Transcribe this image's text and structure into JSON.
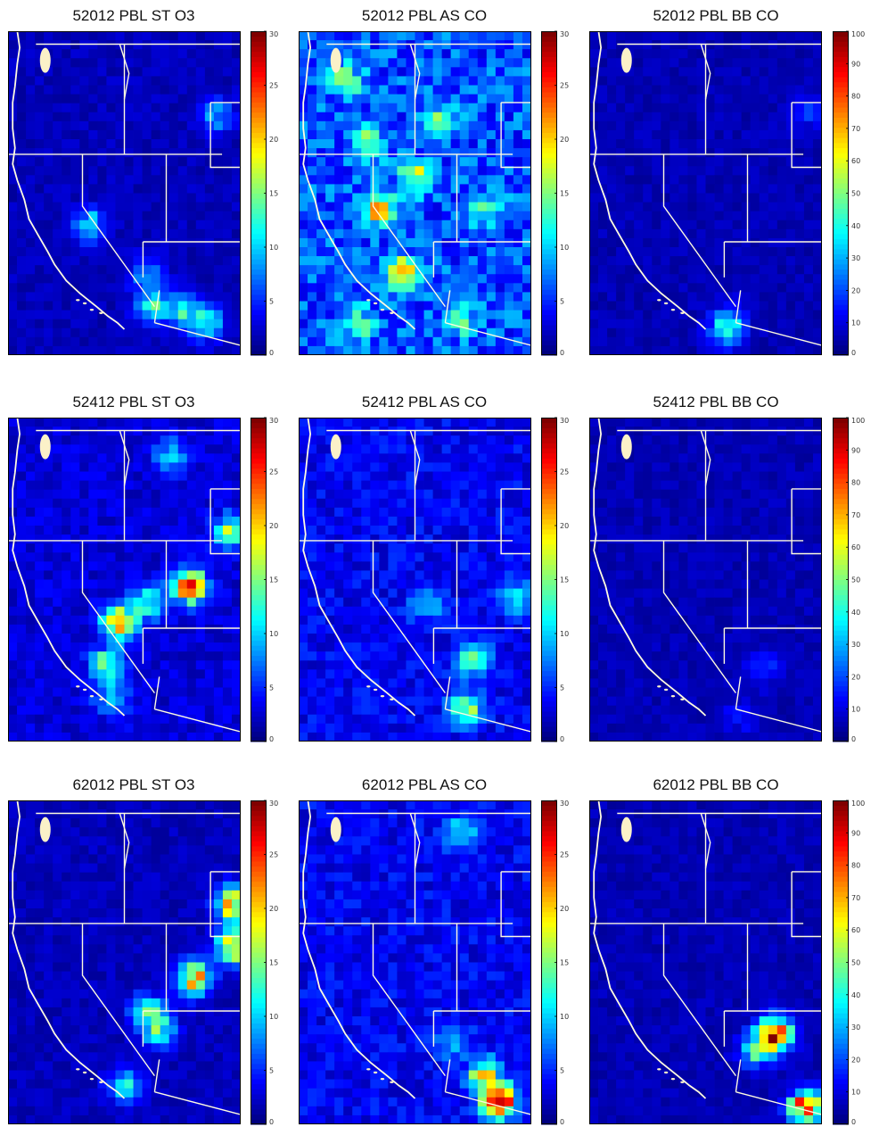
{
  "chart_data": [
    {
      "type": "heatmap",
      "title": "52012 PBL ST O3",
      "colorbar_ticks": [
        "0",
        "5",
        "10",
        "15",
        "20",
        "25",
        "30"
      ],
      "colorbar_range": [
        0,
        30
      ],
      "hotspots": [
        [
          0.62,
          0.85,
          12
        ],
        [
          0.85,
          0.9,
          12
        ],
        [
          0.75,
          0.86,
          10
        ],
        [
          0.35,
          0.6,
          10
        ],
        [
          0.9,
          0.26,
          8
        ],
        [
          0.6,
          0.75,
          8
        ]
      ],
      "base": 2,
      "colormap": "jet"
    },
    {
      "type": "heatmap",
      "title": "52012 PBL AS CO",
      "colorbar_ticks": [
        "0",
        "5",
        "10",
        "15",
        "20",
        "25",
        "30"
      ],
      "colorbar_range": [
        0,
        30
      ],
      "hotspots": [
        [
          0.45,
          0.75,
          18
        ],
        [
          0.35,
          0.55,
          16
        ],
        [
          0.5,
          0.45,
          12
        ],
        [
          0.2,
          0.15,
          10
        ],
        [
          0.3,
          0.35,
          10
        ],
        [
          0.6,
          0.28,
          9
        ],
        [
          0.8,
          0.55,
          9
        ],
        [
          0.25,
          0.9,
          9
        ],
        [
          0.7,
          0.9,
          8
        ]
      ],
      "base": 7,
      "colormap": "jet"
    },
    {
      "type": "heatmap",
      "title": "52012 PBL BB CO",
      "colorbar_ticks": [
        "0",
        "10",
        "20",
        "30",
        "40",
        "50",
        "60",
        "70",
        "80",
        "90",
        "100"
      ],
      "colorbar_range": [
        0,
        100
      ],
      "hotspots": [
        [
          0.93,
          0.25,
          14
        ],
        [
          0.61,
          0.9,
          26
        ],
        [
          0.57,
          0.93,
          22
        ]
      ],
      "base": 6,
      "colormap": "jet"
    },
    {
      "type": "heatmap",
      "title": "52412 PBL ST O3",
      "colorbar_ticks": [
        "0",
        "5",
        "10",
        "15",
        "20",
        "25",
        "30"
      ],
      "colorbar_range": [
        0,
        30
      ],
      "hotspots": [
        [
          0.48,
          0.63,
          20
        ],
        [
          0.78,
          0.52,
          24
        ],
        [
          0.6,
          0.57,
          13
        ],
        [
          0.43,
          0.76,
          14
        ],
        [
          0.96,
          0.35,
          14
        ],
        [
          0.45,
          0.87,
          9
        ],
        [
          0.7,
          0.12,
          8
        ]
      ],
      "base": 3,
      "colormap": "jet"
    },
    {
      "type": "heatmap",
      "title": "52412 PBL AS CO",
      "colorbar_ticks": [
        "0",
        "5",
        "10",
        "15",
        "20",
        "25",
        "30"
      ],
      "colorbar_range": [
        0,
        30
      ],
      "hotspots": [
        [
          0.72,
          0.9,
          14
        ],
        [
          0.75,
          0.75,
          12
        ],
        [
          0.93,
          0.55,
          9
        ],
        [
          0.55,
          0.58,
          7
        ]
      ],
      "base": 4,
      "colormap": "jet"
    },
    {
      "type": "heatmap",
      "title": "52412 PBL BB CO",
      "colorbar_ticks": [
        "0",
        "10",
        "20",
        "30",
        "40",
        "50",
        "60",
        "70",
        "80",
        "90",
        "100"
      ],
      "colorbar_range": [
        0,
        100
      ],
      "hotspots": [
        [
          0.75,
          0.77,
          14
        ],
        [
          0.65,
          0.92,
          10
        ]
      ],
      "base": 6,
      "colormap": "jet"
    },
    {
      "type": "heatmap",
      "title": "62012 PBL ST O3",
      "colorbar_ticks": [
        "0",
        "5",
        "10",
        "15",
        "20",
        "25",
        "30"
      ],
      "colorbar_range": [
        0,
        30
      ],
      "hotspots": [
        [
          0.8,
          0.55,
          22
        ],
        [
          0.97,
          0.32,
          22
        ],
        [
          0.97,
          0.45,
          22
        ],
        [
          0.6,
          0.65,
          12
        ],
        [
          0.5,
          0.88,
          10
        ],
        [
          0.65,
          0.71,
          12
        ]
      ],
      "base": 2,
      "colormap": "jet"
    },
    {
      "type": "heatmap",
      "title": "62012 PBL AS CO",
      "colorbar_ticks": [
        "0",
        "5",
        "10",
        "15",
        "20",
        "25",
        "30"
      ],
      "colorbar_range": [
        0,
        30
      ],
      "hotspots": [
        [
          0.86,
          0.93,
          28
        ],
        [
          0.8,
          0.85,
          16
        ],
        [
          0.65,
          0.75,
          8
        ],
        [
          0.7,
          0.1,
          8
        ]
      ],
      "base": 4,
      "colormap": "jet"
    },
    {
      "type": "heatmap",
      "title": "62012 PBL BB CO",
      "colorbar_ticks": [
        "0",
        "10",
        "20",
        "30",
        "40",
        "50",
        "60",
        "70",
        "80",
        "90",
        "100"
      ],
      "colorbar_range": [
        0,
        100
      ],
      "hotspots": [
        [
          0.8,
          0.72,
          90
        ],
        [
          0.93,
          0.95,
          90
        ],
        [
          0.72,
          0.77,
          40
        ]
      ],
      "base": 6,
      "colormap": "jet"
    }
  ]
}
